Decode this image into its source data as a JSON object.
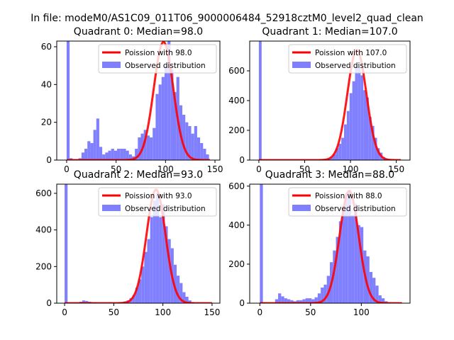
{
  "figure": {
    "suptitle": "In file: modeM0/AS1C09_011T06_9000006484_52918cztM0_level2_quad_clean"
  },
  "colors": {
    "hist_fill": "#8080ff",
    "curve": "#ff0000",
    "axis": "#000000",
    "background": "#ffffff"
  },
  "chart_data": [
    {
      "type": "histogram",
      "title": "Quadrant 0: Median=98.0",
      "median": 98.0,
      "xlim": [
        -10,
        155
      ],
      "ylim": [
        0,
        63
      ],
      "xticks": [
        0,
        50,
        100,
        150
      ],
      "yticks": [
        0,
        20,
        40,
        60
      ],
      "bin_width": 3,
      "legend": {
        "placement": "upper right",
        "entries": [
          "Poission with 98.0",
          "Observed distribution"
        ]
      },
      "bins": [
        [
          0,
          63
        ],
        [
          3,
          1
        ],
        [
          6,
          0
        ],
        [
          9,
          0
        ],
        [
          12,
          1
        ],
        [
          15,
          4
        ],
        [
          18,
          6
        ],
        [
          21,
          10
        ],
        [
          24,
          9
        ],
        [
          27,
          16
        ],
        [
          30,
          22
        ],
        [
          33,
          7
        ],
        [
          36,
          3
        ],
        [
          39,
          4
        ],
        [
          42,
          5
        ],
        [
          45,
          6
        ],
        [
          48,
          5
        ],
        [
          51,
          6
        ],
        [
          54,
          6
        ],
        [
          57,
          6
        ],
        [
          60,
          5
        ],
        [
          63,
          3
        ],
        [
          66,
          2
        ],
        [
          69,
          6
        ],
        [
          72,
          12
        ],
        [
          75,
          14
        ],
        [
          78,
          16
        ],
        [
          81,
          13
        ],
        [
          84,
          12
        ],
        [
          87,
          17
        ],
        [
          90,
          35
        ],
        [
          93,
          40
        ],
        [
          96,
          44
        ],
        [
          99,
          50
        ],
        [
          102,
          63
        ],
        [
          105,
          48
        ],
        [
          108,
          36
        ],
        [
          111,
          44
        ],
        [
          114,
          29
        ],
        [
          117,
          24
        ],
        [
          120,
          20
        ],
        [
          123,
          18
        ],
        [
          126,
          14
        ],
        [
          129,
          18
        ],
        [
          132,
          12
        ],
        [
          135,
          9
        ],
        [
          138,
          6
        ],
        [
          141,
          3
        ]
      ],
      "poisson_peak": 62.5,
      "poisson_xrange": [
        0,
        145
      ]
    },
    {
      "type": "histogram",
      "title": "Quadrant 1: Median=107.0",
      "median": 107.0,
      "xlim": [
        -10,
        165
      ],
      "ylim": [
        0,
        800
      ],
      "xticks": [
        0,
        50,
        100,
        150
      ],
      "yticks": [
        0,
        200,
        400,
        600
      ],
      "bin_width": 3,
      "legend": {
        "placement": "upper right",
        "entries": [
          "Poission with 107.0",
          "Observed distribution"
        ]
      },
      "bins": [
        [
          0,
          800
        ],
        [
          3,
          3
        ],
        [
          66,
          4
        ],
        [
          69,
          6
        ],
        [
          75,
          10
        ],
        [
          78,
          20
        ],
        [
          81,
          40
        ],
        [
          84,
          80
        ],
        [
          87,
          110
        ],
        [
          90,
          150
        ],
        [
          93,
          240
        ],
        [
          96,
          330
        ],
        [
          99,
          450
        ],
        [
          102,
          530
        ],
        [
          105,
          640
        ],
        [
          108,
          620
        ],
        [
          111,
          570
        ],
        [
          114,
          470
        ],
        [
          117,
          420
        ],
        [
          120,
          290
        ],
        [
          123,
          230
        ],
        [
          126,
          150
        ],
        [
          129,
          80
        ],
        [
          132,
          50
        ],
        [
          135,
          20
        ],
        [
          138,
          8
        ],
        [
          141,
          3
        ]
      ],
      "poisson_peak": 740,
      "poisson_xrange": [
        0,
        155
      ]
    },
    {
      "type": "histogram",
      "title": "Quadrant 2: Median=93.0",
      "median": 93.0,
      "xlim": [
        -8,
        158
      ],
      "ylim": [
        0,
        650
      ],
      "xticks": [
        0,
        50,
        100,
        150
      ],
      "yticks": [
        0,
        200,
        400,
        600
      ],
      "bin_width": 3,
      "legend": {
        "placement": "upper right",
        "entries": [
          "Poission with 93.0",
          "Observed distribution"
        ]
      },
      "bins": [
        [
          0,
          650
        ],
        [
          15,
          8
        ],
        [
          18,
          15
        ],
        [
          21,
          12
        ],
        [
          24,
          8
        ],
        [
          27,
          5
        ],
        [
          30,
          5
        ],
        [
          54,
          4
        ],
        [
          57,
          5
        ],
        [
          60,
          10
        ],
        [
          63,
          15
        ],
        [
          66,
          28
        ],
        [
          69,
          45
        ],
        [
          72,
          85
        ],
        [
          75,
          130
        ],
        [
          78,
          200
        ],
        [
          81,
          280
        ],
        [
          84,
          350
        ],
        [
          87,
          470
        ],
        [
          90,
          560
        ],
        [
          93,
          600
        ],
        [
          96,
          470
        ],
        [
          99,
          540
        ],
        [
          102,
          420
        ],
        [
          105,
          350
        ],
        [
          108,
          300
        ],
        [
          111,
          210
        ],
        [
          114,
          150
        ],
        [
          117,
          110
        ],
        [
          120,
          60
        ],
        [
          123,
          35
        ],
        [
          126,
          15
        ],
        [
          129,
          5
        ]
      ],
      "poisson_peak": 620,
      "poisson_xrange": [
        0,
        150
      ]
    },
    {
      "type": "histogram",
      "title": "Quadrant 3: Median=88.0",
      "median": 88.0,
      "xlim": [
        -10,
        148
      ],
      "ylim": [
        0,
        610
      ],
      "xticks": [
        0,
        50,
        100
      ],
      "yticks": [
        0,
        200,
        400,
        600
      ],
      "bin_width": 3,
      "legend": {
        "placement": "upper right",
        "entries": [
          "Poission with 88.0",
          "Observed distribution"
        ]
      },
      "bins": [
        [
          0,
          610
        ],
        [
          3,
          3
        ],
        [
          15,
          20
        ],
        [
          18,
          50
        ],
        [
          21,
          35
        ],
        [
          24,
          25
        ],
        [
          27,
          20
        ],
        [
          30,
          15
        ],
        [
          33,
          10
        ],
        [
          36,
          15
        ],
        [
          39,
          15
        ],
        [
          42,
          20
        ],
        [
          45,
          25
        ],
        [
          48,
          25
        ],
        [
          51,
          20
        ],
        [
          54,
          30
        ],
        [
          57,
          50
        ],
        [
          60,
          80
        ],
        [
          63,
          95
        ],
        [
          66,
          140
        ],
        [
          69,
          210
        ],
        [
          72,
          270
        ],
        [
          75,
          340
        ],
        [
          78,
          420
        ],
        [
          81,
          480
        ],
        [
          84,
          560
        ],
        [
          87,
          580
        ],
        [
          90,
          450
        ],
        [
          93,
          510
        ],
        [
          96,
          400
        ],
        [
          99,
          390
        ],
        [
          102,
          270
        ],
        [
          105,
          240
        ],
        [
          108,
          160
        ],
        [
          111,
          130
        ],
        [
          114,
          90
        ],
        [
          117,
          40
        ],
        [
          120,
          25
        ],
        [
          123,
          10
        ],
        [
          126,
          5
        ]
      ],
      "poisson_peak": 575,
      "poisson_xrange": [
        0,
        140
      ]
    }
  ]
}
